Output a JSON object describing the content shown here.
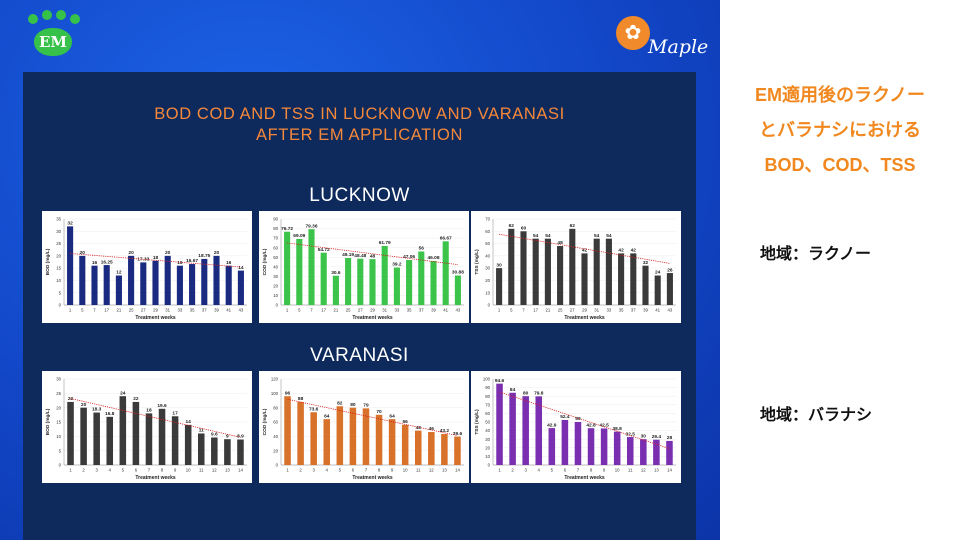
{
  "slide": {
    "em_logo_text": "EM",
    "maple_logo_text": "Maple",
    "title_line1": "BOD COD AND TSS IN LUCKNOW AND VARANASI",
    "title_line2": "AFTER EM APPLICATION",
    "section_lucknow": "LUCKNOW",
    "section_varanasi": "VARANASI",
    "side_title_line1": "EM適用後のラクノー",
    "side_title_line2": "とバラナシにおける",
    "side_title_line3": "BOD、COD、TSS",
    "region_lucknow": "地域：ラクノー",
    "region_varanasi": "地域：バラナシ",
    "colors": {
      "background_blue": "#1247c8",
      "panel_navy": "#0e2a5c",
      "title_orange": "#f5883a",
      "side_orange": "#f0881f",
      "lucknow_bod": "#1a2a80",
      "lucknow_cod": "#3cc34a",
      "lucknow_tss": "#3a3a3a",
      "varanasi_bod": "#3a3a3a",
      "varanasi_cod": "#d8712a",
      "varanasi_tss": "#7a2fb0",
      "trend_line": "#d62020"
    }
  },
  "chart_data": [
    {
      "id": "lucknow-bod",
      "type": "bar",
      "categories": [
        "1",
        "5",
        "7",
        "17",
        "21",
        "25",
        "27",
        "29",
        "31",
        "33",
        "35",
        "37",
        "39",
        "41",
        "43"
      ],
      "values": [
        32,
        20,
        16,
        16.25,
        12,
        20,
        17.33,
        18,
        20,
        16,
        16.67,
        18.75,
        20,
        16,
        14
      ],
      "labels": [
        "32",
        "20",
        "16",
        "16.25",
        "12",
        "20",
        "17.33",
        "18",
        "20",
        "16",
        "16.67",
        "18.75",
        "20",
        "16",
        "14"
      ],
      "ylim": [
        0,
        35
      ],
      "yticks": [
        0,
        5,
        10,
        15,
        20,
        25,
        30,
        35
      ],
      "ylabel": "BOD (mg/L)",
      "xlabel": "Treatment weeks",
      "trendline": true
    },
    {
      "id": "lucknow-cod",
      "type": "bar",
      "categories": [
        "1",
        "5",
        "7",
        "17",
        "21",
        "25",
        "27",
        "29",
        "31",
        "33",
        "35",
        "37",
        "39",
        "41",
        "43"
      ],
      "values": [
        76.72,
        69.09,
        79.36,
        54.72,
        30.6,
        49.19,
        48.48,
        48,
        61.79,
        39.2,
        47.06,
        56,
        46.08,
        66.67,
        30.88
      ],
      "labels": [
        "76.72",
        "69.09",
        "79.36",
        "54.72",
        "30.6",
        "49.19",
        "48.48",
        "48",
        "61.79",
        "39.2",
        "47.06",
        "56",
        "46.08",
        "66.67",
        "30.88"
      ],
      "ylim": [
        0,
        90
      ],
      "yticks": [
        0,
        10,
        20,
        30,
        40,
        50,
        60,
        70,
        80,
        90
      ],
      "ylabel": "COD (mg/L)",
      "xlabel": "Treatment weeks",
      "trendline": true
    },
    {
      "id": "lucknow-tss",
      "type": "bar",
      "categories": [
        "1",
        "5",
        "7",
        "17",
        "21",
        "25",
        "27",
        "29",
        "31",
        "33",
        "35",
        "37",
        "39",
        "41",
        "43"
      ],
      "values": [
        30,
        62,
        60,
        54,
        54,
        48,
        62,
        42,
        54,
        54,
        42,
        42,
        32,
        24,
        26
      ],
      "labels": [
        "30",
        "62",
        "60",
        "54",
        "54",
        "48",
        "62",
        "42",
        "54",
        "54",
        "42",
        "42",
        "32",
        "24",
        "26"
      ],
      "ylim": [
        0,
        70
      ],
      "yticks": [
        0,
        10,
        20,
        30,
        40,
        50,
        60,
        70
      ],
      "ylabel": "TSS (mg/L)",
      "xlabel": "Treatment weeks",
      "trendline": true
    },
    {
      "id": "varanasi-bod",
      "type": "bar",
      "categories": [
        "1",
        "2",
        "3",
        "4",
        "5",
        "6",
        "7",
        "8",
        "9",
        "10",
        "11",
        "12",
        "13",
        "14"
      ],
      "values": [
        22,
        20,
        18.3,
        16.8,
        24,
        22,
        18,
        19.6,
        17,
        14,
        11,
        9.6,
        9,
        8.9
      ],
      "labels": [
        "22",
        "20",
        "18.3",
        "16.8",
        "24",
        "22",
        "18",
        "19.6",
        "17",
        "14",
        "11",
        "9.6",
        "9",
        "8.9"
      ],
      "ylim": [
        0,
        30
      ],
      "yticks": [
        0,
        5,
        10,
        15,
        20,
        25,
        30
      ],
      "ylabel": "BOD (mg/L)",
      "xlabel": "Treatment weeks",
      "trendline": true
    },
    {
      "id": "varanasi-cod",
      "type": "bar",
      "categories": [
        "1",
        "2",
        "3",
        "4",
        "5",
        "6",
        "7",
        "8",
        "9",
        "10",
        "11",
        "12",
        "13",
        "14"
      ],
      "values": [
        96,
        88,
        73.6,
        64,
        82,
        80,
        79,
        70,
        64,
        56,
        48,
        46,
        43.2,
        39.6
      ],
      "labels": [
        "96",
        "88",
        "73.6",
        "64",
        "82",
        "80",
        "79",
        "70",
        "64",
        "56",
        "48",
        "46",
        "43.2",
        "39.6"
      ],
      "ylim": [
        0,
        120
      ],
      "yticks": [
        0,
        20,
        40,
        60,
        80,
        100,
        120
      ],
      "ylabel": "COD (mg/L)",
      "xlabel": "Treatment weeks",
      "trendline": true
    },
    {
      "id": "varanasi-tss",
      "type": "bar",
      "categories": [
        "1",
        "2",
        "3",
        "4",
        "5",
        "6",
        "7",
        "8",
        "9",
        "10",
        "11",
        "12",
        "13",
        "14"
      ],
      "values": [
        94.6,
        84,
        80,
        79.8,
        42.9,
        52.4,
        50,
        42.8,
        42.5,
        38.8,
        32.5,
        30,
        29.4,
        28
      ],
      "labels": [
        "94.6",
        "84",
        "80",
        "79.8",
        "42.9",
        "52.4",
        "50",
        "42.8",
        "42.5",
        "38.8",
        "32.5",
        "30",
        "29.4",
        "28"
      ],
      "ylim": [
        0,
        100
      ],
      "yticks": [
        0,
        10,
        20,
        30,
        40,
        50,
        60,
        70,
        80,
        90,
        100
      ],
      "ylabel": "TSS (mg/L)",
      "xlabel": "Treatment weeks",
      "trendline": true
    }
  ]
}
